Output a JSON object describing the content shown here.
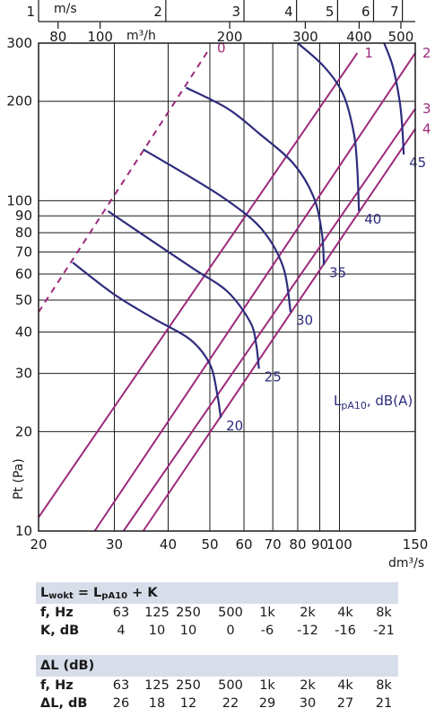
{
  "chart_data": {
    "type": "line",
    "x_axis": {
      "label": "dm³/s",
      "scale": "log",
      "range": [
        20,
        150
      ],
      "ticks": [
        20,
        30,
        40,
        50,
        60,
        70,
        80,
        90,
        100,
        150
      ]
    },
    "y_axis": {
      "label": "Pt (Pa)",
      "scale": "log",
      "range": [
        10,
        300
      ],
      "ticks": [
        10,
        20,
        30,
        40,
        50,
        60,
        70,
        80,
        90,
        100,
        200,
        300
      ]
    },
    "top_axis_velocity": {
      "label": "m/s",
      "ticks": [
        {
          "label": "1",
          "x": 20
        },
        {
          "label": "2",
          "x": 39.5
        },
        {
          "label": "3",
          "x": 60
        },
        {
          "label": "4",
          "x": 79.5
        },
        {
          "label": "5",
          "x": 99
        },
        {
          "label": "6",
          "x": 120
        },
        {
          "label": "7",
          "x": 140
        }
      ]
    },
    "top_axis_flow": {
      "label": "m³/h",
      "ticks": [
        {
          "label": "80",
          "x": 22.2
        },
        {
          "label": "100",
          "x": 27.8
        },
        {
          "label": "200",
          "x": 55.6
        },
        {
          "label": "300",
          "x": 83.3
        },
        {
          "label": "400",
          "x": 111.1
        },
        {
          "label": "500",
          "x": 138.9
        }
      ]
    },
    "grid": true,
    "system_lines": [
      {
        "label": "0",
        "dashed": true,
        "points": [
          [
            20,
            46
          ],
          [
            50,
            290
          ]
        ]
      },
      {
        "label": "1",
        "points": [
          [
            20,
            11
          ],
          [
            110,
            280
          ]
        ]
      },
      {
        "label": "2",
        "points": [
          [
            27,
            10
          ],
          [
            150,
            280
          ]
        ]
      },
      {
        "label": "3",
        "points": [
          [
            31.5,
            10
          ],
          [
            150,
            190
          ]
        ]
      },
      {
        "label": "4",
        "points": [
          [
            35,
            10
          ],
          [
            150,
            165
          ]
        ]
      }
    ],
    "fan_curves": [
      {
        "label": "20",
        "points": [
          [
            24,
            65
          ],
          [
            30,
            52
          ],
          [
            37,
            44
          ],
          [
            45,
            38
          ],
          [
            50,
            32
          ],
          [
            52,
            26
          ],
          [
            53,
            22
          ]
        ]
      },
      {
        "label": "25",
        "points": [
          [
            29,
            93
          ],
          [
            37,
            75
          ],
          [
            46,
            62
          ],
          [
            55,
            53
          ],
          [
            62,
            43
          ],
          [
            64,
            37
          ],
          [
            65,
            31
          ]
        ]
      },
      {
        "label": "30",
        "points": [
          [
            35,
            143
          ],
          [
            45,
            118
          ],
          [
            55,
            100
          ],
          [
            66,
            82
          ],
          [
            74,
            63
          ],
          [
            77,
            46
          ]
        ]
      },
      {
        "label": "35",
        "points": [
          [
            44,
            220
          ],
          [
            55,
            190
          ],
          [
            65,
            160
          ],
          [
            78,
            130
          ],
          [
            87,
            103
          ],
          [
            91,
            80
          ],
          [
            92,
            64
          ]
        ]
      },
      {
        "label": "40",
        "points": [
          [
            80,
            300
          ],
          [
            92,
            255
          ],
          [
            102,
            210
          ],
          [
            108,
            160
          ],
          [
            110,
            125
          ],
          [
            111,
            93
          ]
        ]
      },
      {
        "label": "45",
        "points": [
          [
            127,
            300
          ],
          [
            133,
            255
          ],
          [
            138,
            200
          ],
          [
            140,
            165
          ],
          [
            141,
            138
          ]
        ]
      }
    ],
    "legend_label": "LpA10, dB(A)"
  },
  "table1": {
    "title_main": "L",
    "title_main_sub": "wokt",
    "title_eq": " = L",
    "title_term_sub": "pA10",
    "title_tail": " + K",
    "rows": [
      {
        "label": "f, Hz",
        "values": [
          "63",
          "125",
          "250",
          "500",
          "1k",
          "2k",
          "4k",
          "8k"
        ]
      },
      {
        "label": "K, dB",
        "values": [
          "4",
          "10",
          "10",
          "0",
          "-6",
          "-12",
          "-16",
          "-21"
        ]
      }
    ]
  },
  "table2": {
    "title": "ΔL (dB)",
    "rows": [
      {
        "label": "f, Hz",
        "values": [
          "63",
          "125",
          "250",
          "500",
          "1k",
          "2k",
          "4k",
          "8k"
        ]
      },
      {
        "label": "ΔL, dB",
        "values": [
          "26",
          "18",
          "12",
          "22",
          "29",
          "30",
          "27",
          "21"
        ]
      }
    ]
  },
  "colors": {
    "system_line": "#9c2a7c",
    "fan_curve": "#2e2c7c",
    "header_band": "#d7dde9"
  }
}
